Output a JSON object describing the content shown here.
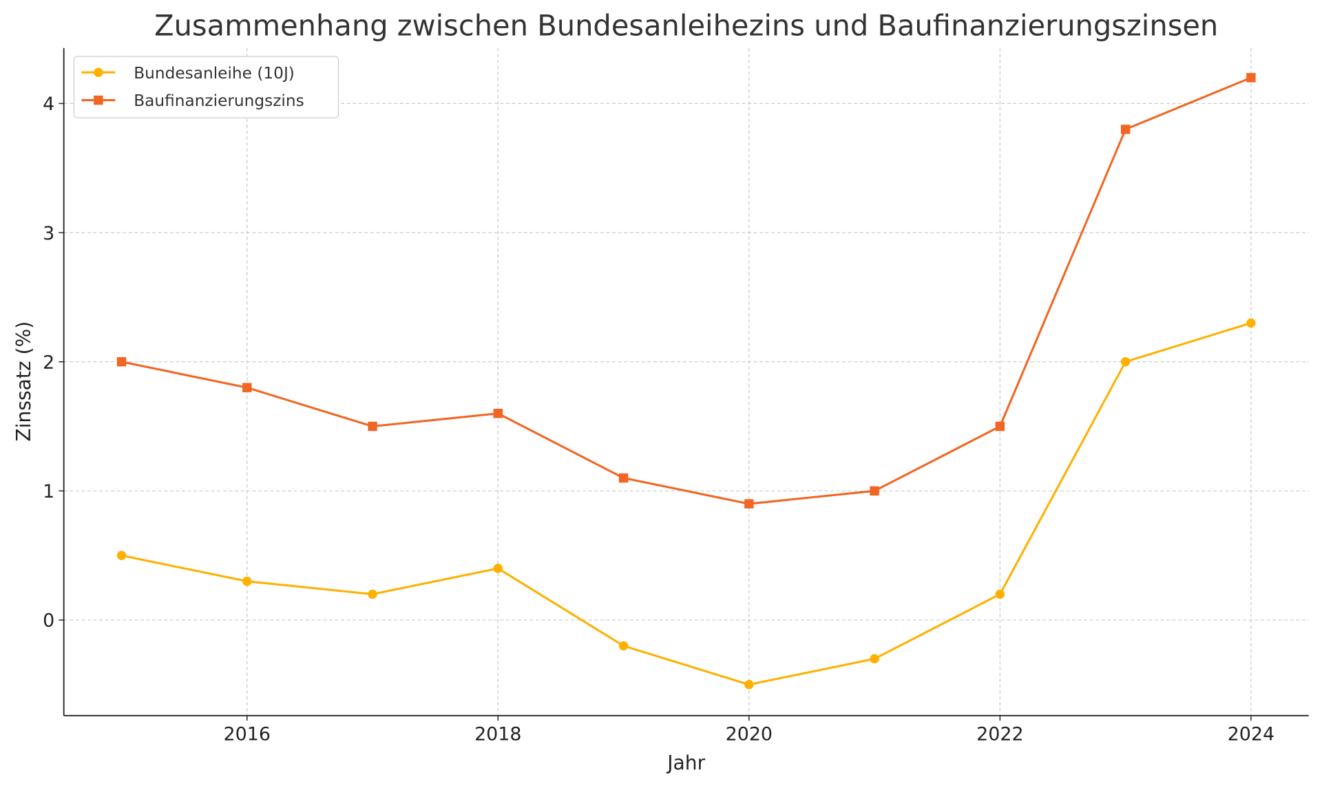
{
  "chart_data": {
    "type": "line",
    "title": "Zusammenhang zwischen Bundesanleihezins und Baufinanzierungszinsen",
    "xlabel": "Jahr",
    "ylabel": "Zinssatz (%)",
    "x": [
      2015,
      2016,
      2017,
      2018,
      2019,
      2020,
      2021,
      2022,
      2023,
      2024
    ],
    "xlim": [
      2014.54,
      2024.46
    ],
    "ylim": [
      -0.74,
      4.43
    ],
    "xticks": [
      "2016",
      "2018",
      "2020",
      "2022",
      "2024"
    ],
    "yticks": [
      "0",
      "1",
      "2",
      "3",
      "4"
    ],
    "grid": true,
    "legend_position": "top-left",
    "series": [
      {
        "name": "Bundesanleihe (10J)",
        "marker": "circle",
        "color": "#FFB000",
        "values": [
          0.5,
          0.3,
          0.2,
          0.4,
          -0.2,
          -0.5,
          -0.3,
          0.2,
          2.0,
          2.3
        ]
      },
      {
        "name": "Baufinanzierungszins",
        "marker": "square",
        "color": "#F26522",
        "values": [
          2.0,
          1.8,
          1.5,
          1.6,
          1.1,
          0.9,
          1.0,
          1.5,
          3.8,
          4.2
        ]
      }
    ]
  }
}
